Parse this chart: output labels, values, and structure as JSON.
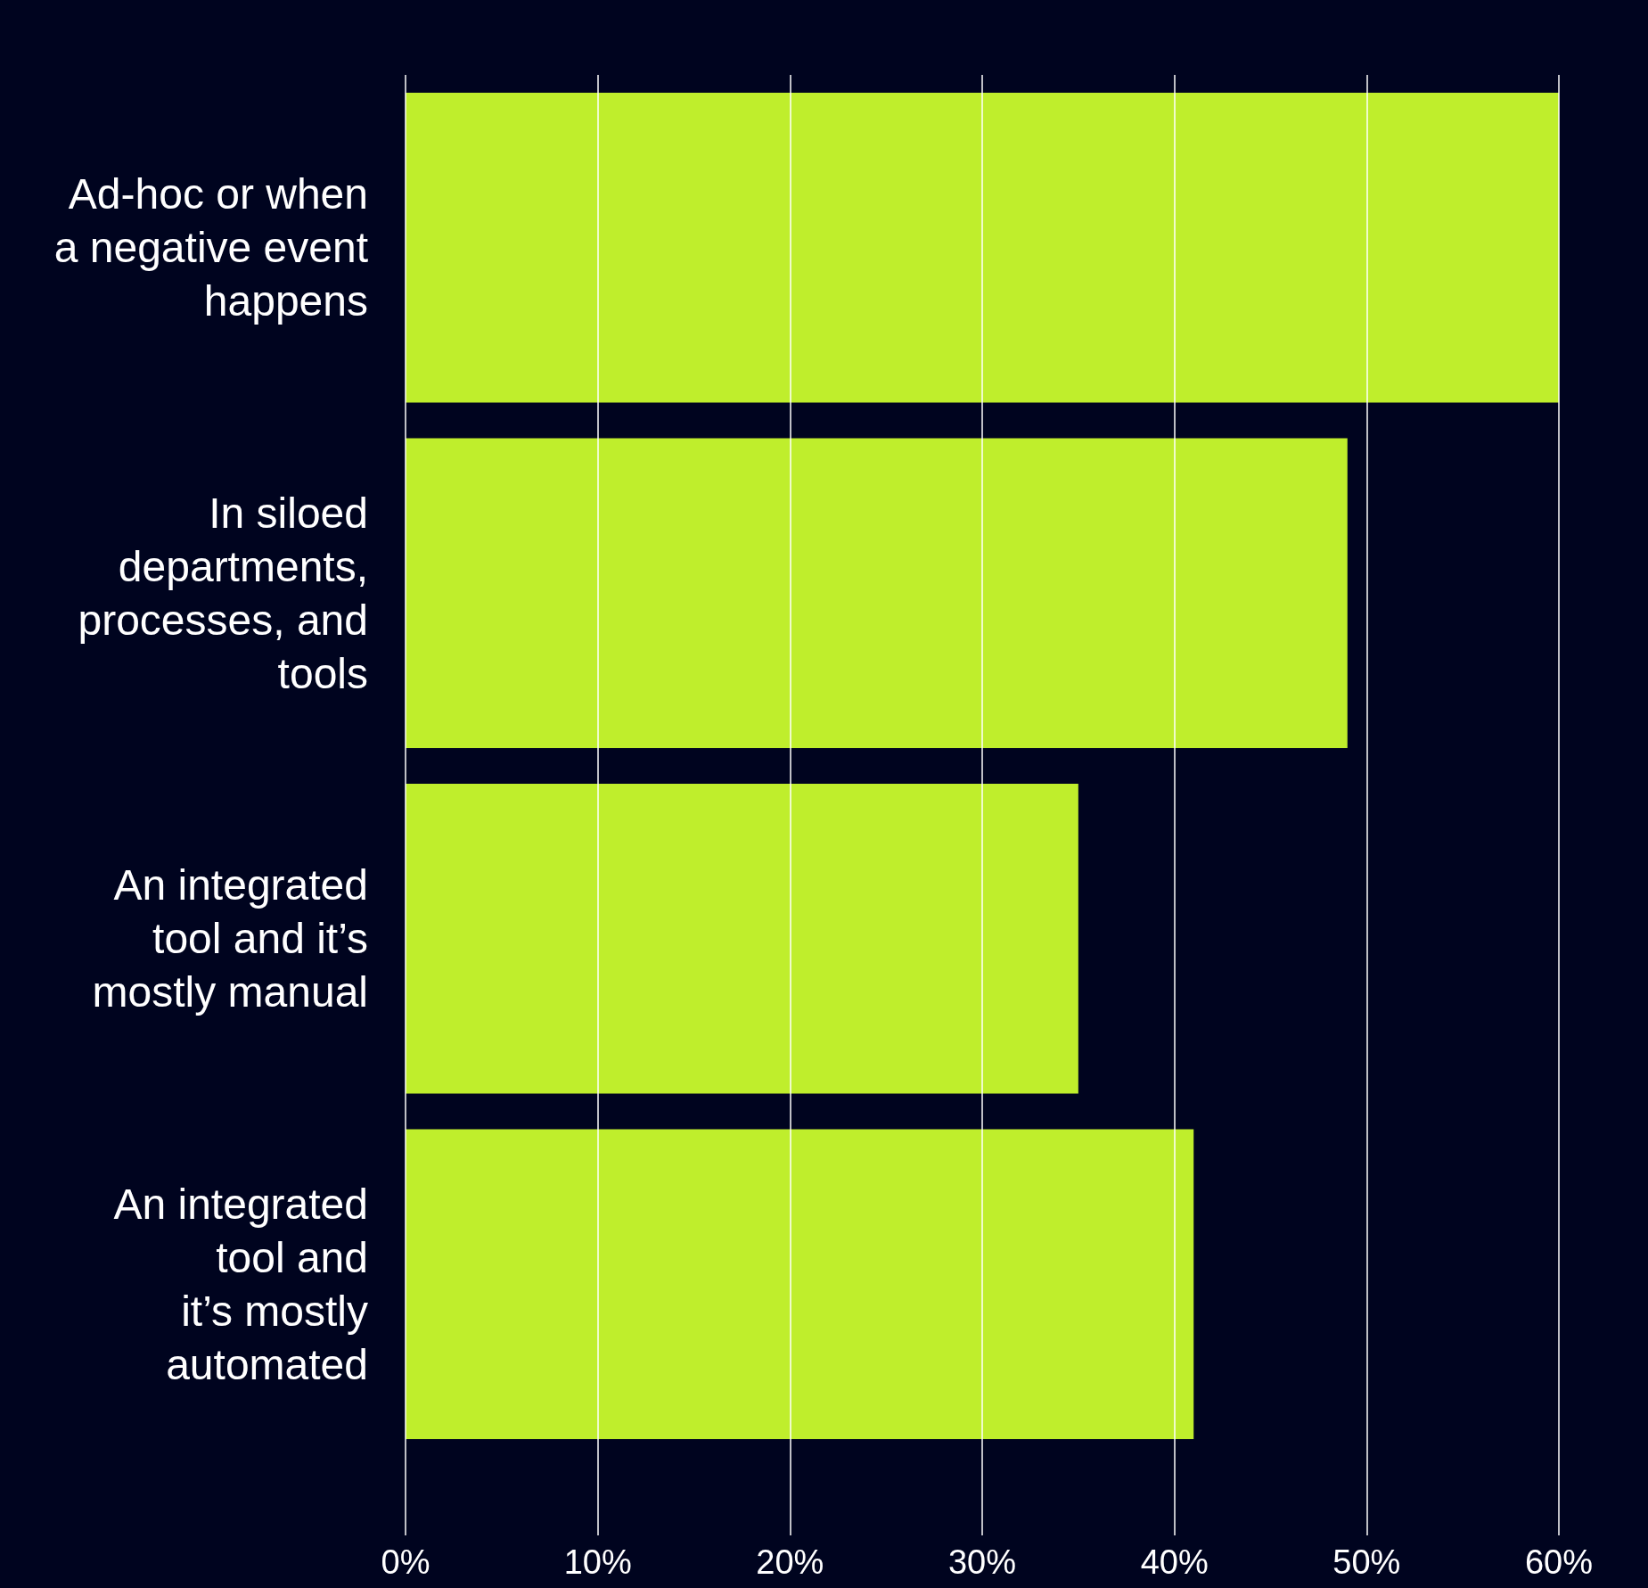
{
  "chart_data": {
    "type": "bar",
    "orientation": "horizontal",
    "categories": [
      "Ad-hoc or when\na negative event\nhappens",
      "In siloed\ndepartments,\nprocesses, and\ntools",
      "An integrated\ntool and it’s\nmostly manual",
      "An integrated\ntool and\nit’s mostly\nautomated"
    ],
    "values": [
      60,
      49,
      35,
      41
    ],
    "color": "#bfee2c",
    "xlim": [
      0,
      60
    ],
    "xticks": [
      {
        "value": 0,
        "label": "0%"
      },
      {
        "value": 10,
        "label": "10%"
      },
      {
        "value": 20,
        "label": "20%"
      },
      {
        "value": 30,
        "label": "30%"
      },
      {
        "value": 40,
        "label": "40%"
      },
      {
        "value": 50,
        "label": "50%"
      },
      {
        "value": 60,
        "label": "60%"
      }
    ],
    "grid": "x"
  }
}
